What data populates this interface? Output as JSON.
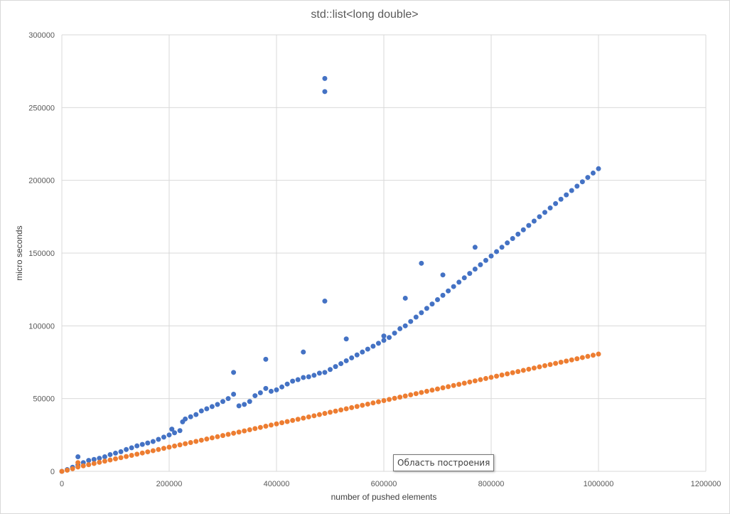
{
  "chart_data": {
    "type": "scatter",
    "title": "std::list<long double>",
    "xlabel": "number of pushed elements",
    "ylabel": "micro seconds",
    "xlim": [
      0,
      1200000
    ],
    "ylim": [
      0,
      300000
    ],
    "x_ticks": [
      "0",
      "200000",
      "400000",
      "600000",
      "800000",
      "1000000",
      "1200000"
    ],
    "y_ticks": [
      "0",
      "50000",
      "100000",
      "150000",
      "200000",
      "250000",
      "300000"
    ],
    "x_tick_values": [
      0,
      200000,
      400000,
      600000,
      800000,
      1000000,
      1200000
    ],
    "y_tick_values": [
      0,
      50000,
      100000,
      150000,
      200000,
      250000,
      300000
    ],
    "grid": true,
    "legend": "none",
    "colors": {
      "series_blue": "#4472c4",
      "series_orange": "#ed7d31",
      "gridline": "#d9d9d9"
    },
    "series": [
      {
        "color": "#4472c4",
        "points": [
          [
            0,
            0
          ],
          [
            10000,
            1200
          ],
          [
            20000,
            2800
          ],
          [
            30000,
            4500
          ],
          [
            30000,
            10000
          ],
          [
            40000,
            6000
          ],
          [
            50000,
            7500
          ],
          [
            60000,
            8200
          ],
          [
            70000,
            9000
          ],
          [
            80000,
            10000
          ],
          [
            90000,
            11500
          ],
          [
            100000,
            12500
          ],
          [
            110000,
            13500
          ],
          [
            120000,
            15000
          ],
          [
            130000,
            16200
          ],
          [
            140000,
            17500
          ],
          [
            150000,
            18500
          ],
          [
            160000,
            19500
          ],
          [
            170000,
            20500
          ],
          [
            180000,
            22000
          ],
          [
            190000,
            23500
          ],
          [
            200000,
            25000
          ],
          [
            205000,
            29000
          ],
          [
            210000,
            26500
          ],
          [
            220000,
            28000
          ],
          [
            225000,
            34000
          ],
          [
            230000,
            36000
          ],
          [
            240000,
            37500
          ],
          [
            250000,
            39000
          ],
          [
            260000,
            41500
          ],
          [
            270000,
            43000
          ],
          [
            280000,
            44500
          ],
          [
            290000,
            46000
          ],
          [
            300000,
            48000
          ],
          [
            310000,
            50000
          ],
          [
            320000,
            53000
          ],
          [
            320000,
            68000
          ],
          [
            330000,
            45000
          ],
          [
            340000,
            46000
          ],
          [
            350000,
            48000
          ],
          [
            360000,
            52000
          ],
          [
            370000,
            54000
          ],
          [
            380000,
            57000
          ],
          [
            380000,
            77000
          ],
          [
            390000,
            55000
          ],
          [
            400000,
            56000
          ],
          [
            410000,
            58000
          ],
          [
            420000,
            60000
          ],
          [
            430000,
            62000
          ],
          [
            440000,
            63000
          ],
          [
            450000,
            64500
          ],
          [
            450000,
            82000
          ],
          [
            460000,
            65000
          ],
          [
            470000,
            66000
          ],
          [
            480000,
            67500
          ],
          [
            490000,
            68000
          ],
          [
            490000,
            117000
          ],
          [
            490000,
            261000
          ],
          [
            490000,
            270000
          ],
          [
            500000,
            70000
          ],
          [
            510000,
            72000
          ],
          [
            520000,
            74000
          ],
          [
            530000,
            76000
          ],
          [
            530000,
            91000
          ],
          [
            540000,
            78000
          ],
          [
            550000,
            80000
          ],
          [
            560000,
            82000
          ],
          [
            570000,
            84000
          ],
          [
            580000,
            86000
          ],
          [
            590000,
            88000
          ],
          [
            600000,
            90000
          ],
          [
            600000,
            93000
          ],
          [
            610000,
            92000
          ],
          [
            620000,
            95000
          ],
          [
            630000,
            98000
          ],
          [
            640000,
            100000
          ],
          [
            640000,
            119000
          ],
          [
            650000,
            103000
          ],
          [
            660000,
            106000
          ],
          [
            670000,
            109000
          ],
          [
            670000,
            143000
          ],
          [
            680000,
            112000
          ],
          [
            690000,
            115000
          ],
          [
            700000,
            118000
          ],
          [
            710000,
            121000
          ],
          [
            710000,
            135000
          ],
          [
            720000,
            124000
          ],
          [
            730000,
            127000
          ],
          [
            740000,
            130000
          ],
          [
            750000,
            133000
          ],
          [
            760000,
            136000
          ],
          [
            770000,
            139000
          ],
          [
            770000,
            154000
          ],
          [
            780000,
            142000
          ],
          [
            790000,
            145000
          ],
          [
            800000,
            148000
          ],
          [
            810000,
            151000
          ],
          [
            820000,
            154000
          ],
          [
            830000,
            157000
          ],
          [
            840000,
            160000
          ],
          [
            850000,
            163000
          ],
          [
            860000,
            166000
          ],
          [
            870000,
            169000
          ],
          [
            880000,
            172000
          ],
          [
            890000,
            175000
          ],
          [
            900000,
            178000
          ],
          [
            910000,
            181000
          ],
          [
            920000,
            184000
          ],
          [
            930000,
            187000
          ],
          [
            940000,
            190000
          ],
          [
            950000,
            193000
          ],
          [
            960000,
            196000
          ],
          [
            970000,
            199000
          ],
          [
            980000,
            202000
          ],
          [
            990000,
            205000
          ],
          [
            1000000,
            208000
          ]
        ]
      },
      {
        "color": "#ed7d31",
        "points": [
          [
            0,
            0
          ],
          [
            10000,
            800
          ],
          [
            20000,
            1800
          ],
          [
            30000,
            3000
          ],
          [
            30000,
            6000
          ],
          [
            40000,
            3800
          ],
          [
            50000,
            4600
          ],
          [
            60000,
            5400
          ],
          [
            70000,
            6200
          ],
          [
            80000,
            7000
          ],
          [
            90000,
            7800
          ],
          [
            100000,
            8600
          ],
          [
            110000,
            9400
          ],
          [
            120000,
            10200
          ],
          [
            130000,
            11000
          ],
          [
            140000,
            11800
          ],
          [
            150000,
            12600
          ],
          [
            160000,
            13400
          ],
          [
            170000,
            14200
          ],
          [
            180000,
            15000
          ],
          [
            190000,
            15800
          ],
          [
            200000,
            16600
          ],
          [
            210000,
            17400
          ],
          [
            220000,
            18200
          ],
          [
            230000,
            19000
          ],
          [
            240000,
            19800
          ],
          [
            250000,
            20600
          ],
          [
            260000,
            21400
          ],
          [
            270000,
            22200
          ],
          [
            280000,
            23000
          ],
          [
            290000,
            23800
          ],
          [
            300000,
            24600
          ],
          [
            310000,
            25400
          ],
          [
            320000,
            26200
          ],
          [
            330000,
            27000
          ],
          [
            340000,
            27800
          ],
          [
            350000,
            28600
          ],
          [
            360000,
            29400
          ],
          [
            370000,
            30200
          ],
          [
            380000,
            31000
          ],
          [
            390000,
            31800
          ],
          [
            400000,
            32600
          ],
          [
            410000,
            33400
          ],
          [
            420000,
            34200
          ],
          [
            430000,
            35000
          ],
          [
            440000,
            35800
          ],
          [
            450000,
            36600
          ],
          [
            460000,
            37400
          ],
          [
            470000,
            38200
          ],
          [
            480000,
            39000
          ],
          [
            490000,
            39800
          ],
          [
            500000,
            40600
          ],
          [
            510000,
            41400
          ],
          [
            520000,
            42200
          ],
          [
            530000,
            43000
          ],
          [
            540000,
            43800
          ],
          [
            550000,
            44600
          ],
          [
            560000,
            45400
          ],
          [
            570000,
            46200
          ],
          [
            580000,
            47000
          ],
          [
            590000,
            47800
          ],
          [
            600000,
            48600
          ],
          [
            610000,
            49400
          ],
          [
            620000,
            50200
          ],
          [
            630000,
            51000
          ],
          [
            640000,
            51800
          ],
          [
            650000,
            52600
          ],
          [
            660000,
            53400
          ],
          [
            670000,
            54200
          ],
          [
            680000,
            55000
          ],
          [
            690000,
            55800
          ],
          [
            700000,
            56600
          ],
          [
            710000,
            57400
          ],
          [
            720000,
            58200
          ],
          [
            730000,
            59000
          ],
          [
            740000,
            59800
          ],
          [
            750000,
            60600
          ],
          [
            760000,
            61400
          ],
          [
            770000,
            62200
          ],
          [
            780000,
            63000
          ],
          [
            790000,
            63800
          ],
          [
            800000,
            64600
          ],
          [
            810000,
            65400
          ],
          [
            820000,
            66200
          ],
          [
            830000,
            67000
          ],
          [
            840000,
            67800
          ],
          [
            850000,
            68600
          ],
          [
            860000,
            69400
          ],
          [
            870000,
            70200
          ],
          [
            880000,
            71000
          ],
          [
            890000,
            71800
          ],
          [
            900000,
            72600
          ],
          [
            910000,
            73400
          ],
          [
            920000,
            74200
          ],
          [
            930000,
            75000
          ],
          [
            940000,
            75800
          ],
          [
            950000,
            76600
          ],
          [
            960000,
            77400
          ],
          [
            970000,
            78200
          ],
          [
            980000,
            79000
          ],
          [
            990000,
            79800
          ],
          [
            1000000,
            80600
          ]
        ]
      }
    ]
  },
  "tooltip": {
    "text": "Область построения"
  }
}
